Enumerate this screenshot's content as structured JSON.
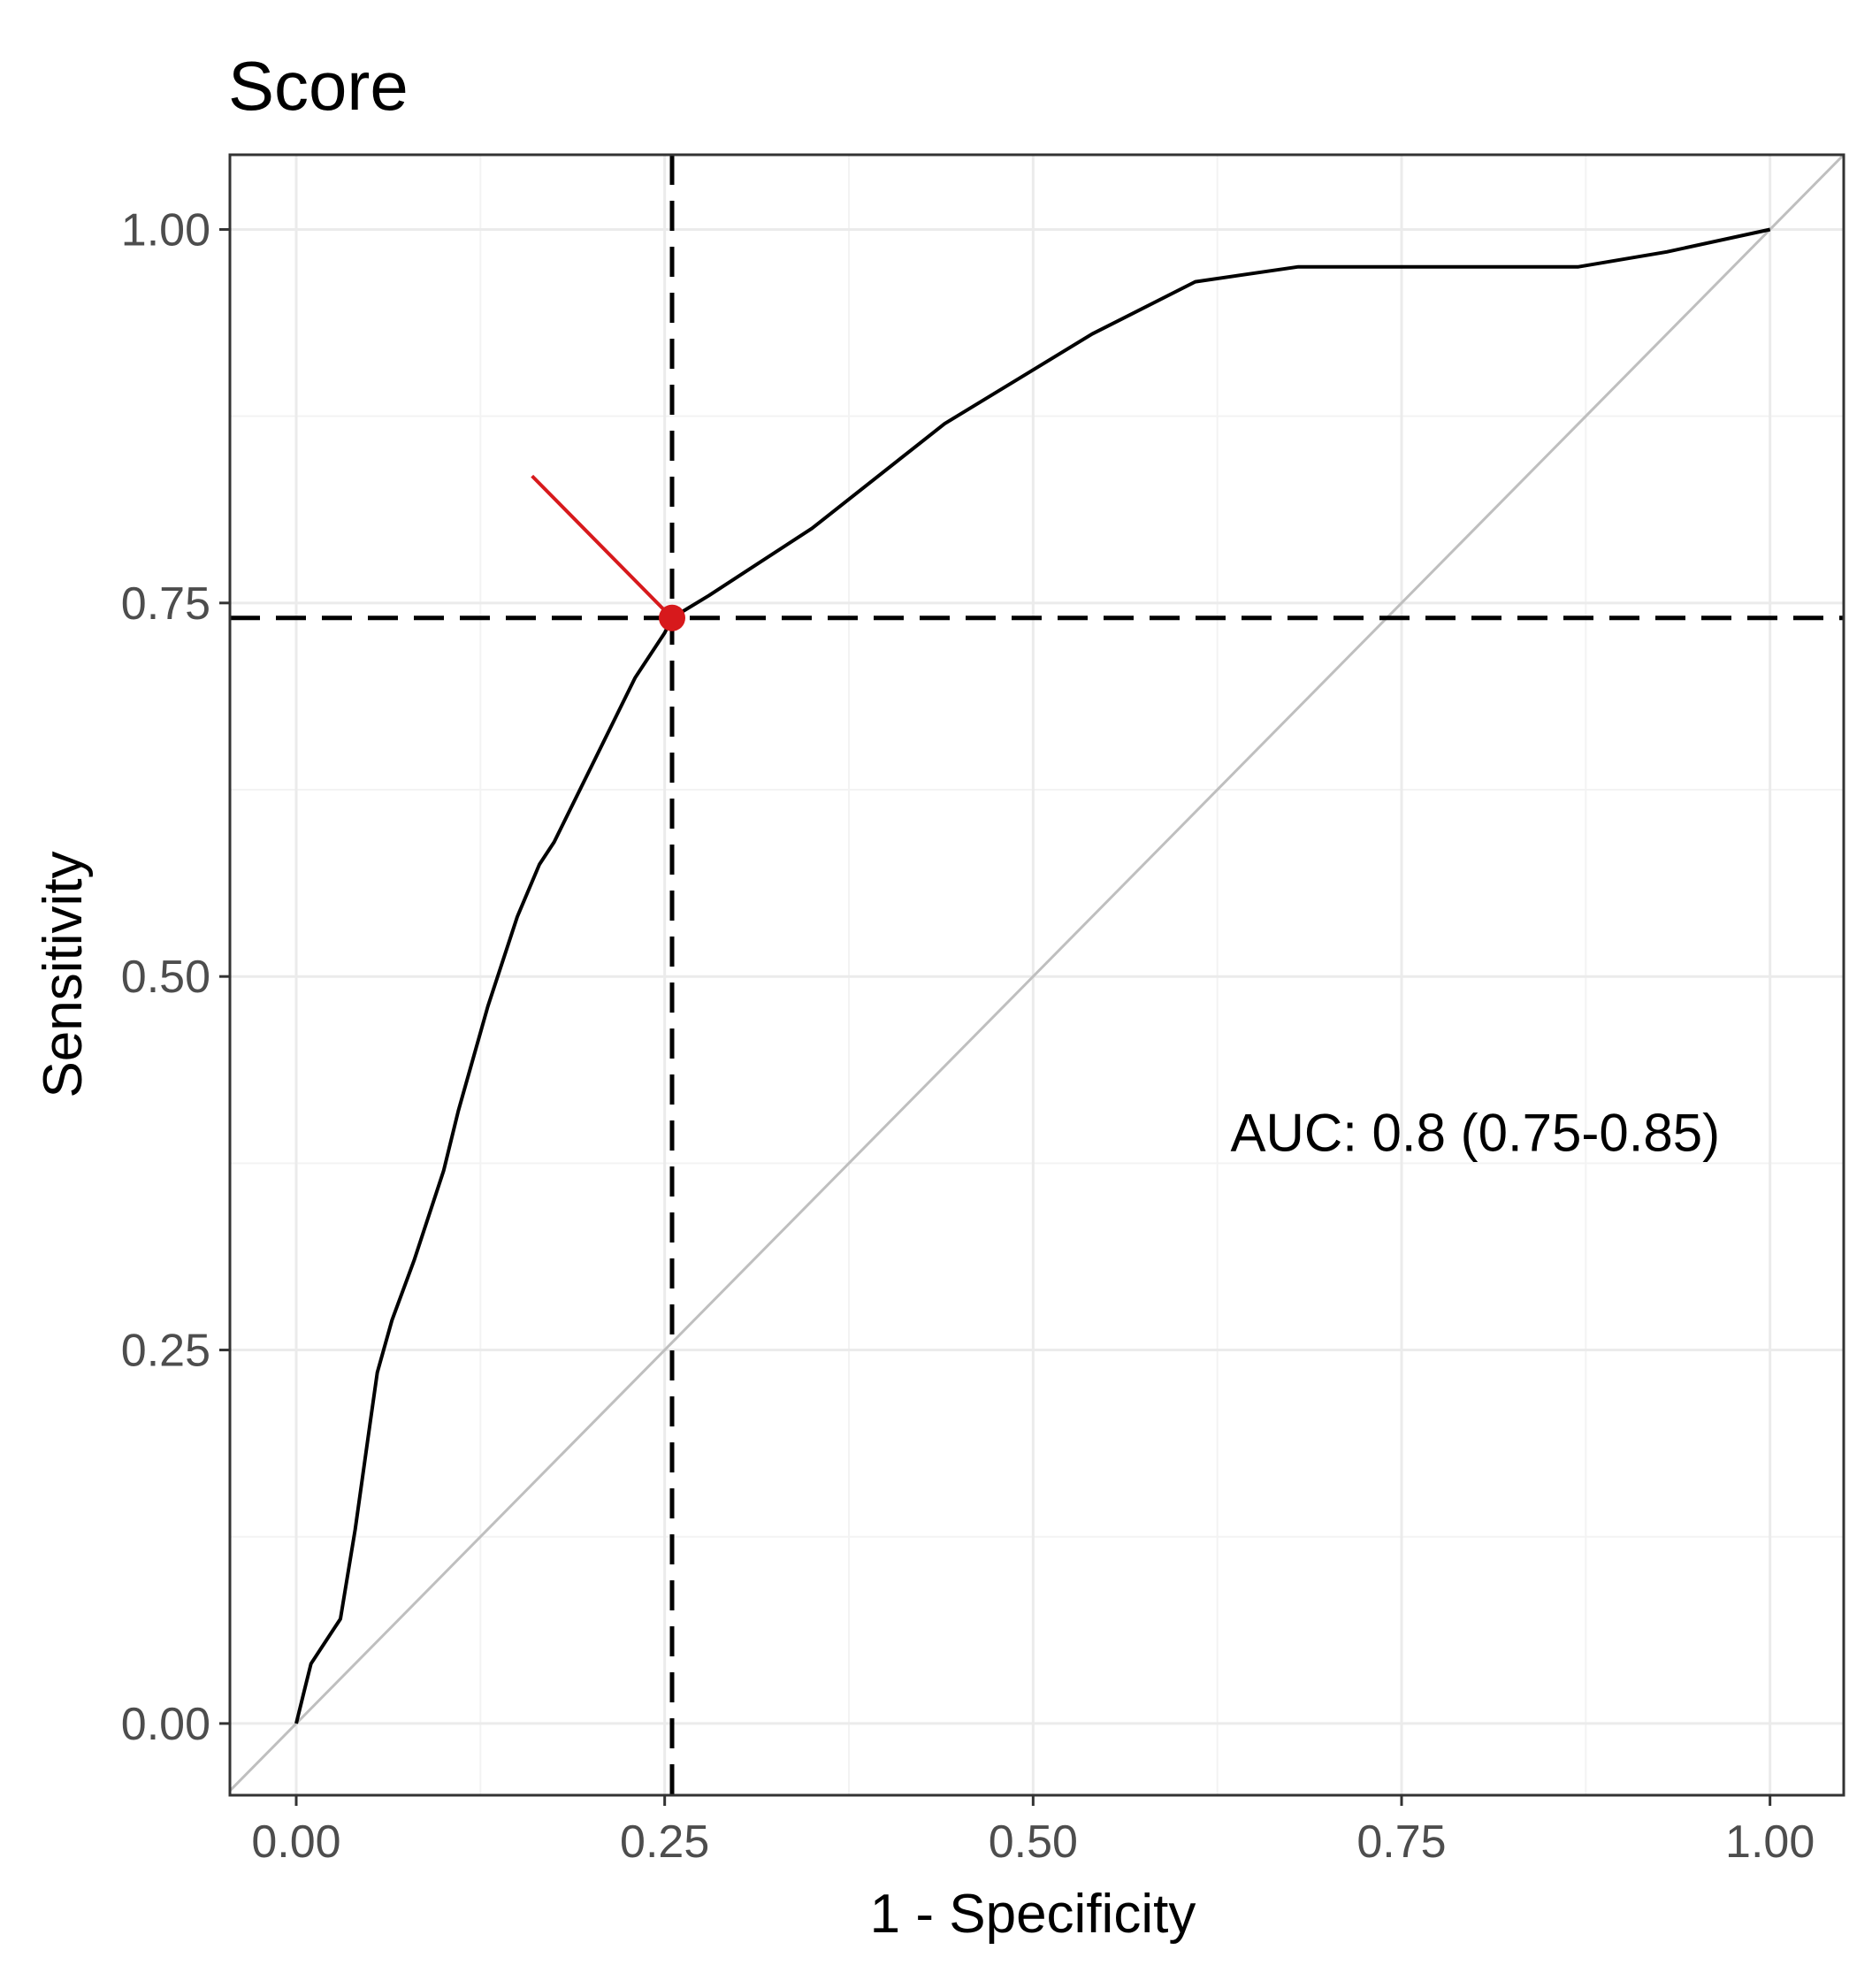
{
  "chart_data": {
    "type": "line",
    "title": "Score",
    "xlabel": "1 - Specificity",
    "ylabel": "Sensitivity",
    "xlim": [
      -0.045,
      1.05
    ],
    "ylim": [
      -0.048,
      1.05
    ],
    "x_ticks": [
      0,
      0.25,
      0.5,
      0.75,
      1
    ],
    "x_tick_labels": [
      "0.00",
      "0.25",
      "0.50",
      "0.75",
      "1.00"
    ],
    "y_ticks": [
      0,
      0.25,
      0.5,
      0.75,
      1
    ],
    "y_tick_labels": [
      "0.00",
      "0.25",
      "0.50",
      "0.75",
      "1.00"
    ],
    "grid": true,
    "series": [
      {
        "color": "#000000",
        "x": [
          0.0,
          0.005,
          0.01,
          0.02,
          0.03,
          0.04,
          0.05,
          0.055,
          0.065,
          0.08,
          0.1,
          0.11,
          0.13,
          0.15,
          0.165,
          0.175,
          0.2,
          0.23,
          0.25,
          0.255,
          0.28,
          0.35,
          0.44,
          0.54,
          0.61,
          0.68,
          0.75,
          0.82,
          0.87,
          0.93,
          1.0
        ],
        "y": [
          0.0,
          0.02,
          0.04,
          0.055,
          0.07,
          0.13,
          0.2,
          0.235,
          0.27,
          0.31,
          0.37,
          0.41,
          0.48,
          0.54,
          0.575,
          0.59,
          0.64,
          0.7,
          0.73,
          0.74,
          0.755,
          0.8,
          0.87,
          0.93,
          0.965,
          0.975,
          0.975,
          0.975,
          0.975,
          0.985,
          1.0
        ]
      }
    ],
    "reference_line": {
      "from": [
        0,
        0
      ],
      "to": [
        1,
        1
      ],
      "color": "#bfbfbf"
    },
    "cutoff": {
      "x": 0.255,
      "y": 0.74,
      "color": "#d7191c"
    },
    "vline_x": 0.255,
    "hline_y": 0.74,
    "arrow": {
      "from": [
        0.16,
        0.835
      ],
      "to": [
        0.255,
        0.74
      ],
      "color": "#d7191c"
    },
    "annotation": {
      "text": "AUC: 0.8 (0.75-0.85)",
      "x": 0.8,
      "y": 0.395
    }
  }
}
